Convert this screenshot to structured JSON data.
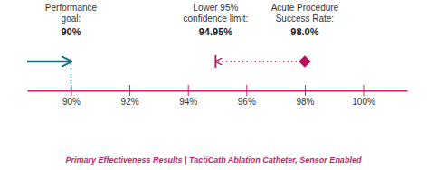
{
  "chart_data": {
    "type": "dotplot",
    "title": "Primary Effectiveness Results  |  TactiCath Ablation Catheter, Sensor Enabled",
    "color": "#cc1a6a",
    "xlim": [
      88.5,
      101.5
    ],
    "xticks": [
      {
        "value": 90,
        "label": "90%"
      },
      {
        "value": 92,
        "label": "92%"
      },
      {
        "value": 94,
        "label": "94%"
      },
      {
        "value": 96,
        "label": "96%"
      },
      {
        "value": 98,
        "label": "98%"
      },
      {
        "value": 100,
        "label": "100%"
      }
    ],
    "tick_labels": "x",
    "grid": false,
    "data_labels": true,
    "series": [
      {
        "name": [
          "Performance",
          "goal:"
        ],
        "values": [
          90
        ],
        "value_labels": [
          "90%"
        ],
        "marker": "arrow",
        "line_style": "dashed",
        "color": "#1e6b7b"
      },
      {
        "name": [
          "Lower 95%",
          "confidence limit:"
        ],
        "values": [
          94.95
        ],
        "value_labels": [
          "94.95%"
        ],
        "marker": "bar",
        "line_style": "dotted",
        "color": "#b5135a"
      },
      {
        "name": [
          "Acute Procedure",
          "Success Rate:"
        ],
        "values": [
          98.0
        ],
        "value_labels": [
          "98.0%"
        ],
        "marker": "diamond",
        "color": "#b5135a"
      }
    ]
  }
}
